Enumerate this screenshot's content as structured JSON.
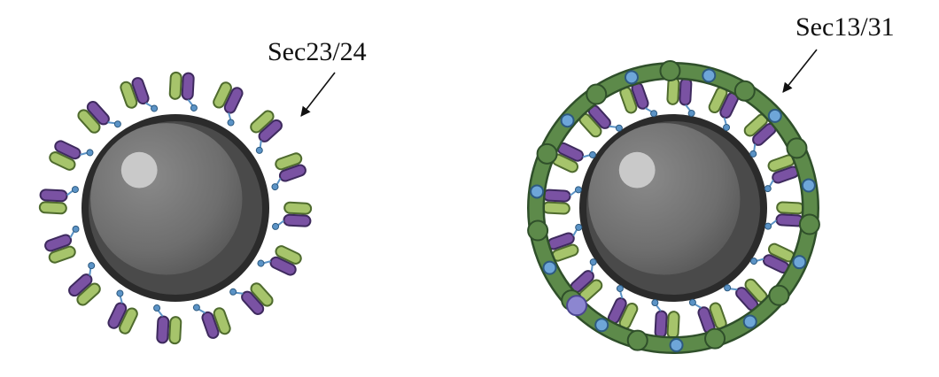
{
  "labels": {
    "left": "Sec23/24",
    "right": "Sec13/31"
  },
  "colors": {
    "background": "#ffffff",
    "bead_core": "#6e6e6e",
    "bead_shadow": "#4a4a4a",
    "bead_outline": "#2b2b2b",
    "bead_highlight": "#c9c9c9",
    "sec23_green": "#a6c46b",
    "sec24_purple": "#7a52a3",
    "linker_blue": "#5b93c6",
    "cage_green": "#5d8a4a",
    "cage_outline": "#2f4f2a",
    "cage_node_blue": "#6ea6d8",
    "cage_node_purple": "#8c86d0"
  },
  "icons": {
    "left_arrow": "arrow-pointing-to-coat",
    "right_arrow": "arrow-pointing-to-cage"
  }
}
